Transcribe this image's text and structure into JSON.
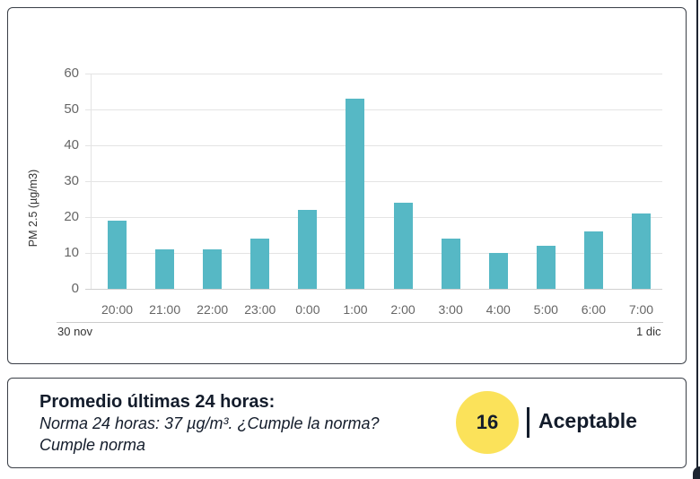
{
  "chart_data": {
    "type": "bar",
    "title": "",
    "xlabel": "",
    "ylabel": "PM 2.5 (µg/m3)",
    "ylim": [
      0,
      60
    ],
    "yticks": [
      0,
      10,
      20,
      30,
      40,
      50,
      60
    ],
    "grid": true,
    "legend": "none",
    "categories": [
      "20:00",
      "21:00",
      "22:00",
      "23:00",
      "0:00",
      "1:00",
      "2:00",
      "3:00",
      "4:00",
      "5:00",
      "6:00",
      "7:00"
    ],
    "values": [
      19,
      11,
      11,
      14,
      22,
      53,
      24,
      14,
      10,
      12,
      16,
      21
    ],
    "bar_color": "#56b8c5",
    "date_labels": {
      "start": "30 nov",
      "end": "1 dic"
    }
  },
  "summary": {
    "title": "Promedio últimas 24 horas:",
    "norm_line": "Norma 24 horas: 37 µg/m³. ¿Cumple la norma?",
    "compliance": "Cumple norma",
    "average_value": "16",
    "status_label": "Aceptable",
    "badge_color": "#fbe25a"
  }
}
